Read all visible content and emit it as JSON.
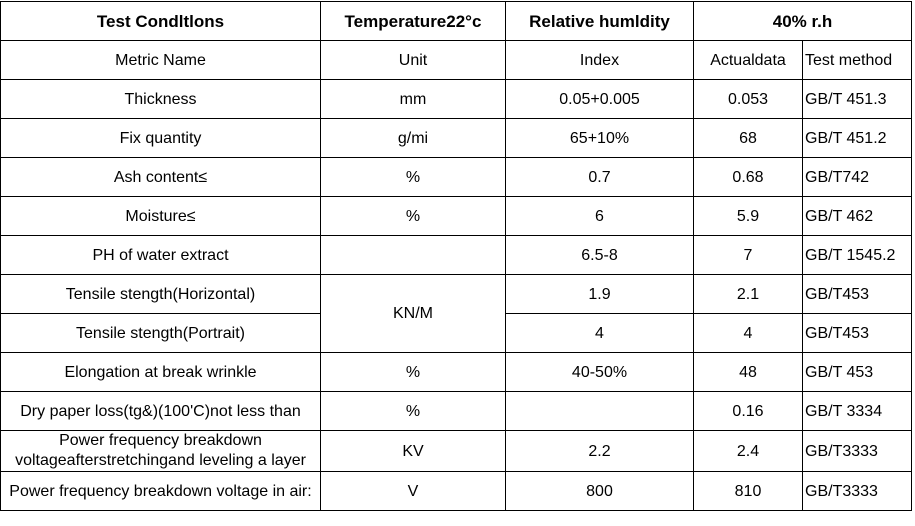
{
  "header": [
    "Test Condltlons",
    "Temperature22°c",
    "Relative humldity",
    "40% r.h"
  ],
  "columns": [
    "Metric Name",
    "Unit",
    "Index",
    "Actualdata",
    "Test method"
  ],
  "rows": [
    {
      "name": "Thickness",
      "unit": "mm",
      "index": "0.05+0.005",
      "actual": "0.053",
      "method": "GB/T 451.3"
    },
    {
      "name": "Fix quantity",
      "unit": "g/mi",
      "index": "65+10%",
      "actual": "68",
      "method": "GB/T 451.2"
    },
    {
      "name": "Ash content≤",
      "unit": "%",
      "index": "0.7",
      "actual": "0.68",
      "method": "GB/T742"
    },
    {
      "name": "Moisture≤",
      "unit": "%",
      "index": "6",
      "actual": "5.9",
      "method": "GB/T 462"
    },
    {
      "name": "PH of water extract",
      "index": "6.5-8",
      "actual": "7",
      "method": "GB/T 1545.2"
    },
    {
      "name": "Tensile stength(Horizontal)",
      "unit": "KN/M",
      "index": "1.9",
      "actual": "2.1",
      "method": "GB/T453"
    },
    {
      "name": "Tensile stength(Portrait)",
      "index": "4",
      "actual": "4",
      "method": "GB/T453"
    },
    {
      "name": "Elongation at break wrinkle",
      "unit": "%",
      "index": "40-50%",
      "actual": "48",
      "method": "GB/T 453"
    },
    {
      "name": "Dry paper loss(tg&)(100'C)not less than",
      "unit": "%",
      "actual": "0.16",
      "method": "GB/T 3334"
    },
    {
      "name": "Power frequency breakdown voltageafterstretchingand leveling a layer",
      "unit": "KV",
      "index": "2.2",
      "actual": "2.4",
      "method": "GB/T3333"
    },
    {
      "name": "Power frequency breakdown voltage in air:",
      "unit": "V",
      "index": "800",
      "actual": "810",
      "method": "GB/T3333"
    }
  ]
}
